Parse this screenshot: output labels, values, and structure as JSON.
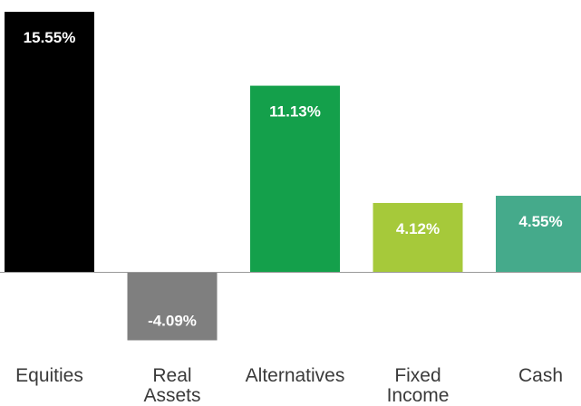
{
  "chart_data": {
    "type": "bar",
    "title": "",
    "xlabel": "",
    "ylabel": "",
    "categories": [
      "Equities",
      "Real Assets",
      "Alternatives",
      "Fixed Income",
      "Cash"
    ],
    "values": [
      15.55,
      -4.09,
      11.13,
      4.12,
      4.55
    ],
    "value_labels": [
      "15.55%",
      "-4.09%",
      "11.13%",
      "4.12%",
      "4.55%"
    ],
    "colors": [
      "#000000",
      "#7f7f7f",
      "#14a04b",
      "#a6c93a",
      "#45aa8b"
    ],
    "ylim": [
      -4.09,
      15.55
    ],
    "grid": false,
    "legend": "none"
  }
}
